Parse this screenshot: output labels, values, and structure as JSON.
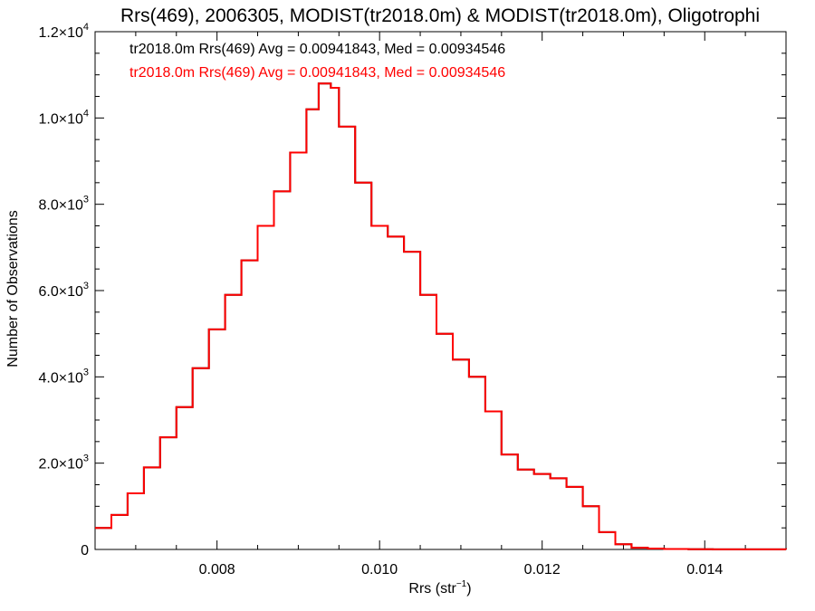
{
  "chart_data": {
    "type": "line",
    "title": "Rrs(469), 2006305, MODIST(tr2018.0m) & MODIST(tr2018.0m), Oligotrophi",
    "xlabel_main": "Rrs (str",
    "xlabel_exp": "−1",
    "xlabel_close": ")",
    "ylabel": "Number of Observations",
    "xlim": [
      0.0065,
      0.015
    ],
    "ylim": [
      0,
      12000
    ],
    "x_ticks": [
      {
        "value": 0.008,
        "label": "0.008"
      },
      {
        "value": 0.01,
        "label": "0.010"
      },
      {
        "value": 0.012,
        "label": "0.012"
      },
      {
        "value": 0.014,
        "label": "0.014"
      }
    ],
    "y_ticks": [
      {
        "value": 0,
        "mant": "0",
        "exp": ""
      },
      {
        "value": 2000,
        "mant": "2.0×10",
        "exp": "3"
      },
      {
        "value": 4000,
        "mant": "4.0×10",
        "exp": "3"
      },
      {
        "value": 6000,
        "mant": "6.0×10",
        "exp": "3"
      },
      {
        "value": 8000,
        "mant": "8.0×10",
        "exp": "3"
      },
      {
        "value": 10000,
        "mant": "1.0×10",
        "exp": "4"
      },
      {
        "value": 12000,
        "mant": "1.2×10",
        "exp": "4"
      }
    ],
    "grid": false,
    "legend_position": "top-left",
    "series": [
      {
        "name": "tr2018.0m Rrs(469) Avg = 0.00941843, Med = 0.00934546",
        "color": "#000000",
        "style": "step",
        "x": [
          0.0065,
          0.0067,
          0.0069,
          0.0071,
          0.0073,
          0.0075,
          0.0077,
          0.0079,
          0.0081,
          0.0083,
          0.0085,
          0.0087,
          0.0089,
          0.0091,
          0.00925,
          0.0094,
          0.0095,
          0.0097,
          0.0099,
          0.0101,
          0.0103,
          0.0105,
          0.0107,
          0.0109,
          0.0111,
          0.0113,
          0.0115,
          0.0117,
          0.0119,
          0.0121,
          0.0123,
          0.0125,
          0.0127,
          0.0129,
          0.0131,
          0.0133,
          0.0135,
          0.0138,
          0.0141,
          0.0145,
          0.015
        ],
        "y": [
          500,
          800,
          1300,
          1900,
          2600,
          3300,
          4200,
          5100,
          5900,
          6700,
          7500,
          8300,
          9200,
          10200,
          10800,
          10700,
          9800,
          8500,
          7500,
          7250,
          6900,
          5900,
          5000,
          4400,
          4000,
          3200,
          2200,
          1850,
          1750,
          1650,
          1450,
          1000,
          400,
          120,
          40,
          20,
          10,
          5,
          3,
          2,
          1
        ]
      },
      {
        "name": "tr2018.0m Rrs(469) Avg = 0.00941843, Med = 0.00934546",
        "color": "#ff0000",
        "style": "step",
        "x": [
          0.0065,
          0.0067,
          0.0069,
          0.0071,
          0.0073,
          0.0075,
          0.0077,
          0.0079,
          0.0081,
          0.0083,
          0.0085,
          0.0087,
          0.0089,
          0.0091,
          0.00925,
          0.0094,
          0.0095,
          0.0097,
          0.0099,
          0.0101,
          0.0103,
          0.0105,
          0.0107,
          0.0109,
          0.0111,
          0.0113,
          0.0115,
          0.0117,
          0.0119,
          0.0121,
          0.0123,
          0.0125,
          0.0127,
          0.0129,
          0.0131,
          0.0133,
          0.0135,
          0.0138,
          0.0141,
          0.0145,
          0.015
        ],
        "y": [
          500,
          800,
          1300,
          1900,
          2600,
          3300,
          4200,
          5100,
          5900,
          6700,
          7500,
          8300,
          9200,
          10200,
          10800,
          10700,
          9800,
          8500,
          7500,
          7250,
          6900,
          5900,
          5000,
          4400,
          4000,
          3200,
          2200,
          1850,
          1750,
          1650,
          1450,
          1000,
          400,
          120,
          40,
          20,
          10,
          5,
          3,
          2,
          1
        ]
      }
    ]
  }
}
